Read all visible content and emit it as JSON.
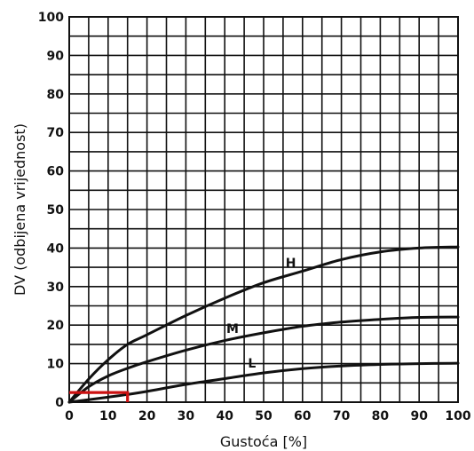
{
  "chart_data": {
    "type": "line",
    "title": "",
    "xlabel": "Gustoća [%]",
    "ylabel": "DV (odbijena vrijednost)",
    "xlim": [
      0,
      100
    ],
    "ylim": [
      0,
      100
    ],
    "grid": true,
    "x_ticks": [
      0,
      10,
      20,
      30,
      40,
      50,
      60,
      70,
      80,
      90,
      100
    ],
    "y_ticks": [
      0,
      10,
      20,
      30,
      40,
      50,
      60,
      70,
      80,
      90,
      100
    ],
    "series": [
      {
        "name": "H",
        "x": [
          0,
          5,
          10,
          15,
          20,
          30,
          40,
          50,
          60,
          70,
          80,
          90,
          100
        ],
        "y": [
          0,
          6,
          11,
          15,
          17.5,
          22.5,
          27,
          31,
          34,
          37,
          39,
          40,
          40.3
        ],
        "label_at": [
          57,
          35
        ]
      },
      {
        "name": "M",
        "x": [
          0,
          5,
          10,
          15,
          20,
          30,
          40,
          50,
          60,
          70,
          80,
          90,
          100
        ],
        "y": [
          0,
          4,
          6.8,
          8.8,
          10.5,
          13.5,
          16,
          18,
          19.7,
          20.8,
          21.5,
          22,
          22.1
        ],
        "label_at": [
          42,
          18
        ]
      },
      {
        "name": "L",
        "x": [
          0,
          10,
          15,
          20,
          30,
          40,
          50,
          60,
          70,
          80,
          90,
          100
        ],
        "y": [
          0,
          1.3,
          2,
          2.8,
          4.6,
          6.1,
          7.6,
          8.7,
          9.4,
          9.8,
          10,
          10.1
        ],
        "label_at": [
          47,
          9
        ]
      }
    ],
    "highlight": {
      "color": "#cc1111",
      "x": [
        0,
        15,
        15
      ],
      "y": [
        2.5,
        2.5,
        0
      ]
    }
  }
}
